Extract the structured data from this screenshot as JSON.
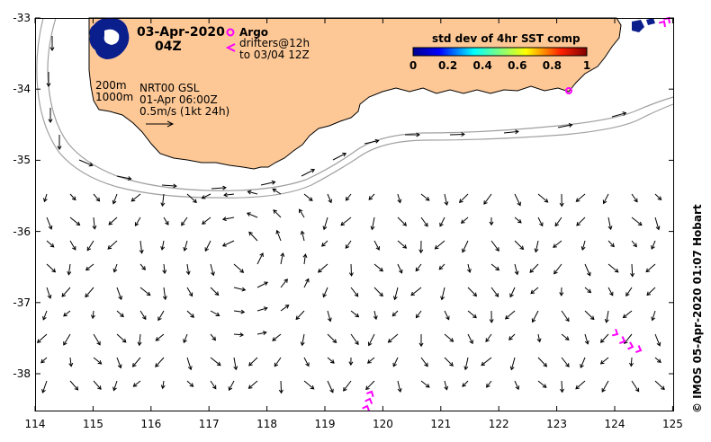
{
  "map": {
    "date": "03-Apr-2020",
    "hour": "04Z",
    "argo_label": "Argo",
    "drifters_label": "drifters@12h",
    "drifters_range": "to 03/04 12Z",
    "depth_200": "200m",
    "depth_1000": "1000m",
    "product": "NRT00 GSL",
    "product_time": "01-Apr 06:00Z",
    "scale_label": "0.5m/s (1kt 24h)",
    "colorbar_title": "std dev of 4hr SST comp",
    "colorbar_ticks": [
      "0",
      "0.2",
      "0.4",
      "0.6",
      "0.8",
      "1"
    ],
    "credit": "© IMOS 05-Apr-2020 01:07 Hobart",
    "lon_ticks": [
      "114",
      "115",
      "116",
      "117",
      "118",
      "119",
      "120",
      "121",
      "122",
      "123",
      "124",
      "125"
    ],
    "lat_ticks": [
      "-33",
      "-34",
      "-35",
      "-36",
      "-37",
      "-38"
    ],
    "colors": {
      "land": "#fdc896",
      "drifter": "#ff00ff",
      "shelf_contour": "#a0a0a0",
      "frame": "#000000",
      "sst_high_std": "#0a1e8c"
    }
  }
}
